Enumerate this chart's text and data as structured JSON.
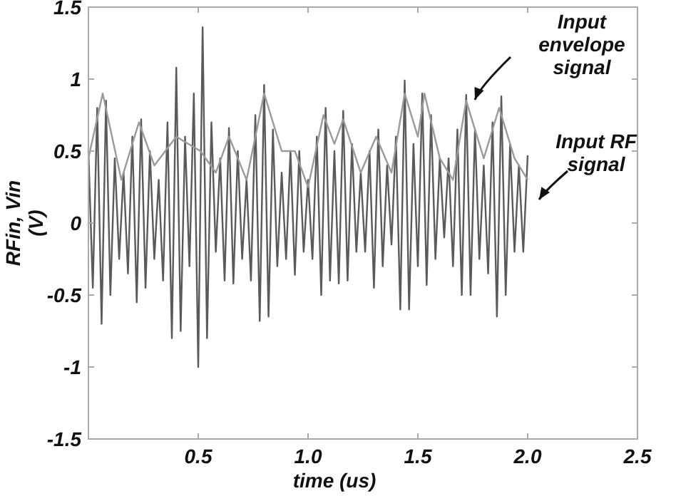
{
  "chart_data": {
    "type": "line",
    "xlabel": "time (us)",
    "ylabel": "RFin, Vin\n(V)",
    "xlim": [
      0,
      2.5
    ],
    "ylim": [
      -1.5,
      1.5
    ],
    "xticks": [
      0.5,
      {
        "value": 1,
        "label": "1.0"
      },
      1.5,
      {
        "value": 2,
        "label": "2.0"
      },
      2.5
    ],
    "yticks": [
      -1.5,
      -1,
      -0.5,
      0,
      0.5,
      1,
      1.5
    ],
    "grid": false,
    "series": [
      {
        "color": "#5a5a5a",
        "x": [
          0,
          0.02,
          0.04,
          0.06,
          0.08,
          0.1,
          0.12,
          0.14,
          0.16,
          0.18,
          0.2,
          0.22,
          0.24,
          0.26,
          0.28,
          0.3,
          0.32,
          0.34,
          0.36,
          0.38,
          0.4,
          0.42,
          0.44,
          0.46,
          0.48,
          0.5,
          0.52,
          0.54,
          0.56,
          0.58,
          0.6,
          0.62,
          0.64,
          0.66,
          0.68,
          0.7,
          0.72,
          0.74,
          0.76,
          0.78,
          0.8,
          0.82,
          0.84,
          0.86,
          0.88,
          0.9,
          0.92,
          0.94,
          0.96,
          0.98,
          1,
          1.02,
          1.04,
          1.06,
          1.08,
          1.1,
          1.12,
          1.14,
          1.16,
          1.18,
          1.2,
          1.22,
          1.24,
          1.26,
          1.28,
          1.3,
          1.32,
          1.34,
          1.36,
          1.38,
          1.4,
          1.42,
          1.44,
          1.46,
          1.48,
          1.5,
          1.52,
          1.54,
          1.56,
          1.58,
          1.6,
          1.62,
          1.64,
          1.66,
          1.68,
          1.7,
          1.72,
          1.74,
          1.76,
          1.78,
          1.8,
          1.82,
          1.84,
          1.86,
          1.88,
          1.9,
          1.92,
          1.94,
          1.96,
          1.98,
          2
        ],
        "values": [
          0.5,
          -0.45,
          0.8,
          -0.7,
          0.85,
          -0.5,
          0.45,
          -0.25,
          0.35,
          -0.35,
          0.6,
          -0.55,
          0.72,
          -0.45,
          0.5,
          -0.25,
          0.3,
          -0.4,
          0.7,
          -0.8,
          1.08,
          -0.75,
          0.6,
          -0.3,
          0.9,
          -1,
          1.36,
          -0.8,
          0.7,
          -0.2,
          0.45,
          -0.4,
          0.66,
          -0.42,
          0.5,
          -0.25,
          0.3,
          -0.4,
          0.75,
          -0.68,
          0.96,
          -0.65,
          0.65,
          -0.3,
          0.35,
          -0.25,
          0.5,
          -0.36,
          0.5,
          -0.2,
          0.3,
          -0.25,
          0.6,
          -0.5,
          0.8,
          -0.4,
          0.5,
          -0.42,
          0.78,
          -0.4,
          0.55,
          -0.2,
          0.35,
          -0.2,
          0.5,
          -0.45,
          0.65,
          -0.3,
          0.4,
          -0.15,
          0.6,
          -0.6,
          0.99,
          -0.6,
          0.55,
          -0.3,
          0.9,
          -0.43,
          0.75,
          -0.25,
          0.45,
          -0.1,
          0.45,
          -0.3,
          0.65,
          -0.5,
          0.89,
          -0.5,
          0.65,
          -0.25,
          0.4,
          -0.35,
          0.7,
          -0.65,
          0.88,
          -0.5,
          0.55,
          -0.2,
          0.4,
          -0.2,
          0.47
        ]
      },
      {
        "color": "#9a9a9a",
        "x": [
          0,
          0.065,
          0.15,
          0.23,
          0.3,
          0.4,
          0.51,
          0.58,
          0.64,
          0.72,
          0.8,
          0.88,
          0.94,
          1,
          1.07,
          1.12,
          1.16,
          1.24,
          1.31,
          1.38,
          1.44,
          1.5,
          1.53,
          1.6,
          1.66,
          1.72,
          1.8,
          1.87,
          1.94,
          2
        ],
        "values": [
          0.45,
          0.9,
          0.3,
          0.7,
          0.4,
          0.6,
          0.5,
          0.35,
          0.6,
          0.3,
          0.9,
          0.5,
          0.5,
          0.25,
          0.75,
          0.55,
          0.72,
          0.35,
          0.6,
          0.35,
          0.9,
          0.6,
          0.9,
          0.45,
          0.3,
          0.85,
          0.45,
          0.8,
          0.45,
          0.3
        ]
      }
    ],
    "annotations": [
      "Input\nenvelope\nsignal",
      "Input RF\nsignal"
    ]
  }
}
